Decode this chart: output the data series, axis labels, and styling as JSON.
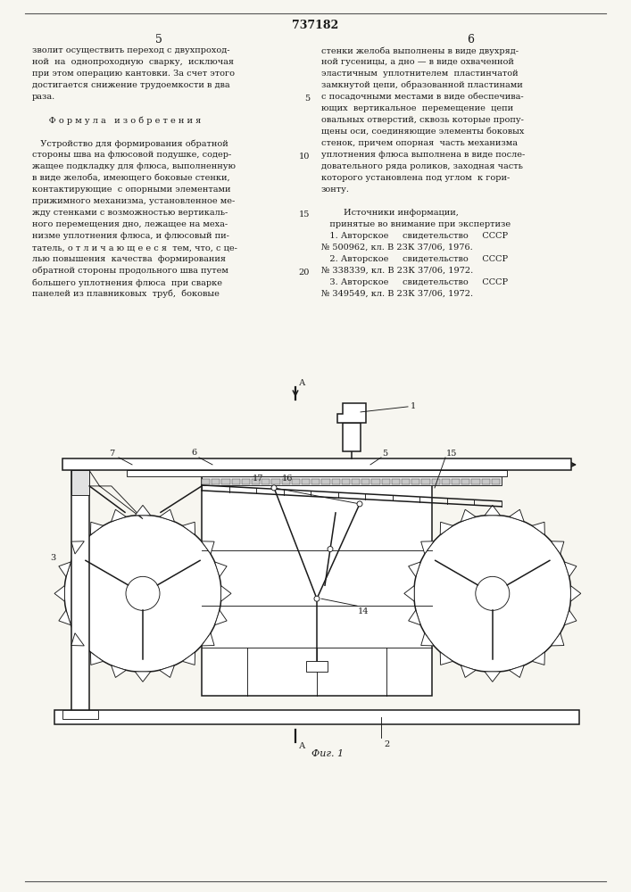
{
  "page_number": "737182",
  "col_left_num": "5",
  "col_right_num": "6",
  "left_col_lines": [
    "зволит осуществить переход с двухпроход-",
    "ной  на  однопроходную  сварку,  исключая",
    "при этом операцию кантовки. За счет этого",
    "достигается снижение трудоемкости в два",
    "раза.",
    "",
    "      Ф о р м у л а   и з о б р е т е н и я",
    "",
    "   Устройство для формирования обратной",
    "стороны шва на флюсовой подушке, содер-",
    "жащее подкладку для флюса, выполненную",
    "в виде желоба, имеющего боковые стенки,",
    "контактирующие  с опорными элементами",
    "прижимного механизма, установленное ме-",
    "жду стенками с возможностью вертикаль-",
    "ного перемещения дно, лежащее на меха-",
    "низме уплотнения флюса, и флюсовый пи-",
    "татель, о т л и ч а ю щ е е с я  тем, что, с це-",
    "лью повышения  качества  формирования",
    "обратной стороны продольного шва путем",
    "большего уплотнения флюса  при сварке",
    "панелей из плавниковых  труб,  боковые"
  ],
  "right_col_lines": [
    "стенки желоба выполнены в виде двухряд-",
    "ной гусеницы, а дно — в виде охваченной",
    "эластичным  уплотнителем  пластинчатой",
    "замкнутой цепи, образованной пластинами",
    "с посадочными местами в виде обеспечива-",
    "ющих  вертикальное  перемещение  цепи",
    "овальных отверстий, сквозь которые пропу-",
    "щены оси, соединяющие элементы боковых",
    "стенок, причем опорная  часть механизма",
    "уплотнения флюса выполнена в виде после-",
    "довательного ряда роликов, заходная часть",
    "которого установлена под углом  к гори-",
    "зонту.",
    "",
    "        Источники информации,",
    "   принятые во внимание при экспертизе",
    "   1. Авторское     свидетельство     СССР",
    "№ 500962, кл. В 23К 37/06, 1976.",
    "   2. Авторское     свидетельство     СССР",
    "№ 338339, кл. В 23К 37/06, 1972.",
    "   3. Авторское     свидетельство     СССР",
    "№ 349549, кл. В 23К 37/06, 1972."
  ],
  "center_line_nums": [
    [
      4,
      "5"
    ],
    [
      9,
      "10"
    ],
    [
      14,
      "15"
    ],
    [
      19,
      "20"
    ]
  ],
  "fig_caption": "Фиг. 1",
  "background_color": "#f7f6f0",
  "text_color": "#1a1a1a"
}
